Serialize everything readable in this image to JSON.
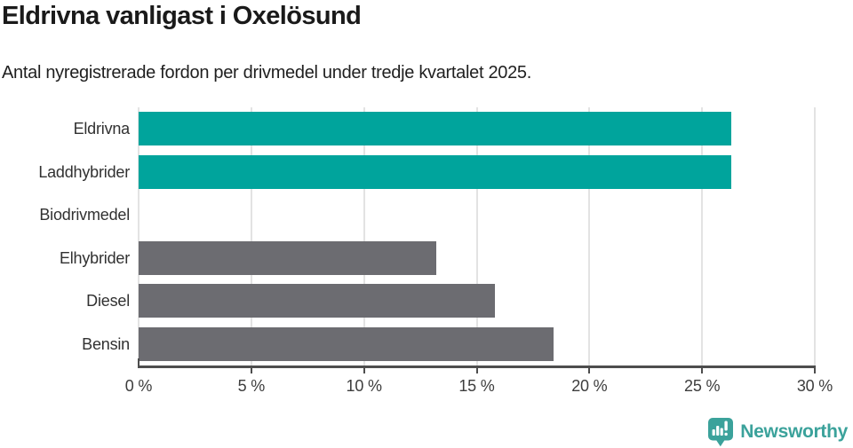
{
  "header": {
    "title": "Eldrivna vanligast i Oxelösund",
    "subtitle": "Antal nyregistrerade fordon per drivmedel under tredje kvartalet 2025."
  },
  "chart_data": {
    "type": "bar",
    "orientation": "horizontal",
    "title": "Eldrivna vanligast i Oxelösund",
    "subtitle": "Antal nyregistrerade fordon per drivmedel under tredje kvartalet 2025.",
    "categories": [
      "Eldrivna",
      "Laddhybrider",
      "Biodrivmedel",
      "Elhybrider",
      "Diesel",
      "Bensin"
    ],
    "values": [
      26.3,
      26.3,
      0,
      13.2,
      15.8,
      18.4
    ],
    "unit": "%",
    "xlim": [
      0,
      30
    ],
    "x_tick_values": [
      0,
      5,
      10,
      15,
      20,
      25,
      30
    ],
    "x_tick_labels": [
      "0 %",
      "5 %",
      "10 %",
      "15 %",
      "20 %",
      "25 %",
      "30 %"
    ],
    "bar_colors": [
      "#00a49c",
      "#00a49c",
      "#6c6c71",
      "#6c6c71",
      "#6c6c71",
      "#6c6c71"
    ],
    "grid": true,
    "legend": "none",
    "gridline_color": "#e3e3e3",
    "axis_color": "#4d4d4d"
  },
  "colors": {
    "highlight": "#00a49c",
    "neutral": "#6c6c71",
    "brand": "#3ba29b"
  },
  "footer": {
    "brand": "Newsworthy"
  }
}
